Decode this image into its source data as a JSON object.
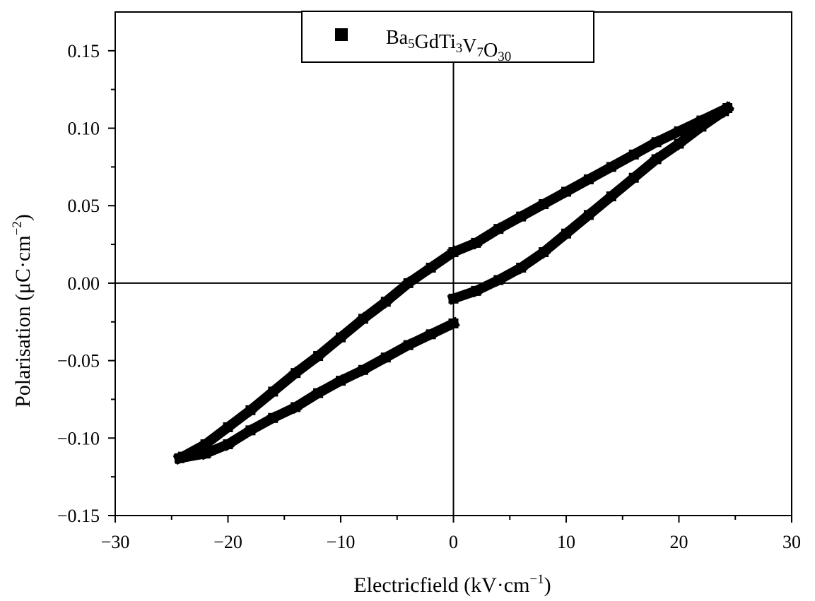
{
  "chart_data": {
    "type": "line",
    "xlabel": "Electricfield (kV·cm",
    "xlabel_sup": "−1",
    "xlabel_close": ")",
    "ylabel": "Polarisation (μC·cm",
    "ylabel_sup": "−2",
    "ylabel_close": ")",
    "xlim": [
      -30,
      30
    ],
    "ylim": [
      -0.15,
      0.175
    ],
    "xticks": [
      -30,
      -20,
      -10,
      0,
      10,
      20,
      30
    ],
    "xtick_labels": [
      "−30",
      "−20",
      "−10",
      "0",
      "10",
      "20",
      "30"
    ],
    "yticks": [
      -0.15,
      -0.1,
      -0.05,
      0.0,
      0.05,
      0.1,
      0.15
    ],
    "ytick_labels": [
      "−0.15",
      "−0.10",
      "−0.05",
      "0.00",
      "0.05",
      "0.10",
      "0.15"
    ],
    "grid": false,
    "zero_lines": true,
    "legend": {
      "position": "top-center",
      "parts": [
        {
          "text": "Ba",
          "sub": "5"
        },
        {
          "text": "GdTi",
          "sub": "3"
        },
        {
          "text": "V",
          "sub": "7"
        },
        {
          "text": "O",
          "sub": "30"
        }
      ]
    },
    "series": [
      {
        "name": "Ba5GdTi3V7O30",
        "color": "#000000",
        "x": [
          0,
          2,
          4,
          6,
          8,
          10,
          12,
          14,
          16,
          18,
          20,
          22,
          24,
          24.3,
          22,
          20,
          18,
          16,
          14,
          12,
          10,
          8,
          6,
          4,
          2,
          0,
          -2,
          -4,
          -6,
          -8,
          -10,
          -12,
          -14,
          -16,
          -18,
          -20,
          -22,
          -24,
          -24.3,
          -22,
          -20,
          -18,
          -16,
          -14,
          -12,
          -10,
          -8,
          -6,
          -4,
          -2,
          0
        ],
        "y": [
          -0.01,
          -0.005,
          0.002,
          0.01,
          0.02,
          0.032,
          0.044,
          0.056,
          0.068,
          0.08,
          0.09,
          0.101,
          0.111,
          0.113,
          0.105,
          0.098,
          0.091,
          0.083,
          0.075,
          0.067,
          0.059,
          0.051,
          0.043,
          0.035,
          0.026,
          0.02,
          0.01,
          0.0,
          -0.012,
          -0.023,
          -0.035,
          -0.047,
          -0.058,
          -0.07,
          -0.082,
          -0.093,
          -0.104,
          -0.112,
          -0.113,
          -0.11,
          -0.104,
          -0.095,
          -0.087,
          -0.08,
          -0.071,
          -0.063,
          -0.056,
          -0.048,
          -0.04,
          -0.033,
          -0.026
        ]
      }
    ]
  }
}
